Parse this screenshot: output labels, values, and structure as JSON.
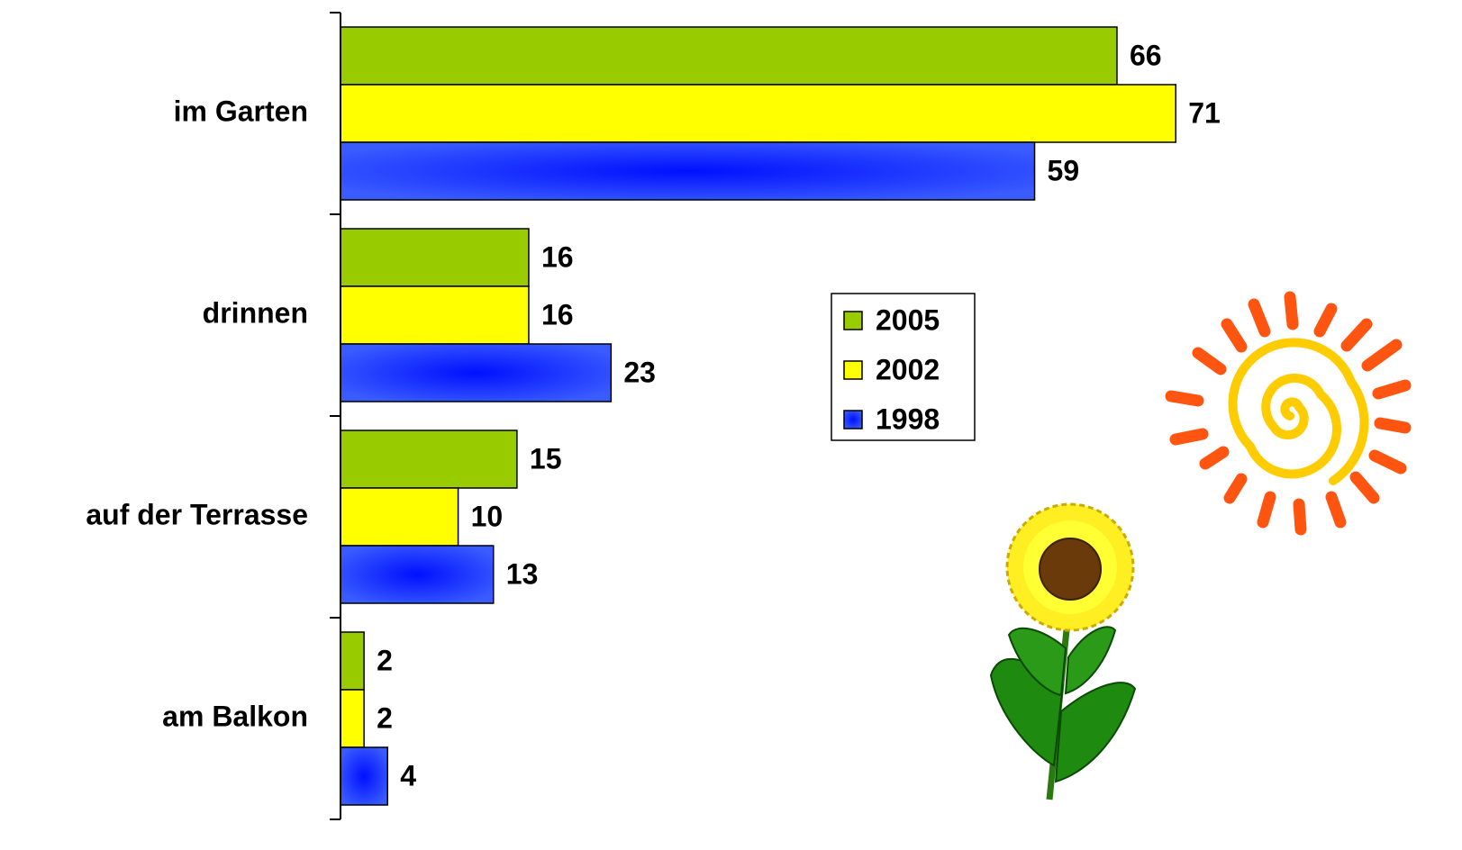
{
  "chart_data": {
    "type": "hbar",
    "categories": [
      "im Garten",
      "drinnen",
      "auf der Terrasse",
      "am Balkon"
    ],
    "series": [
      {
        "name": "2005",
        "color": "#99cc00",
        "values": [
          66,
          16,
          15,
          2
        ]
      },
      {
        "name": "2002",
        "color": "#ffff00",
        "values": [
          71,
          16,
          10,
          2
        ]
      },
      {
        "name": "1998",
        "color": "#3355ff",
        "values": [
          59,
          23,
          13,
          4
        ]
      }
    ],
    "xlim": [
      0,
      90
    ],
    "legend": "right"
  }
}
